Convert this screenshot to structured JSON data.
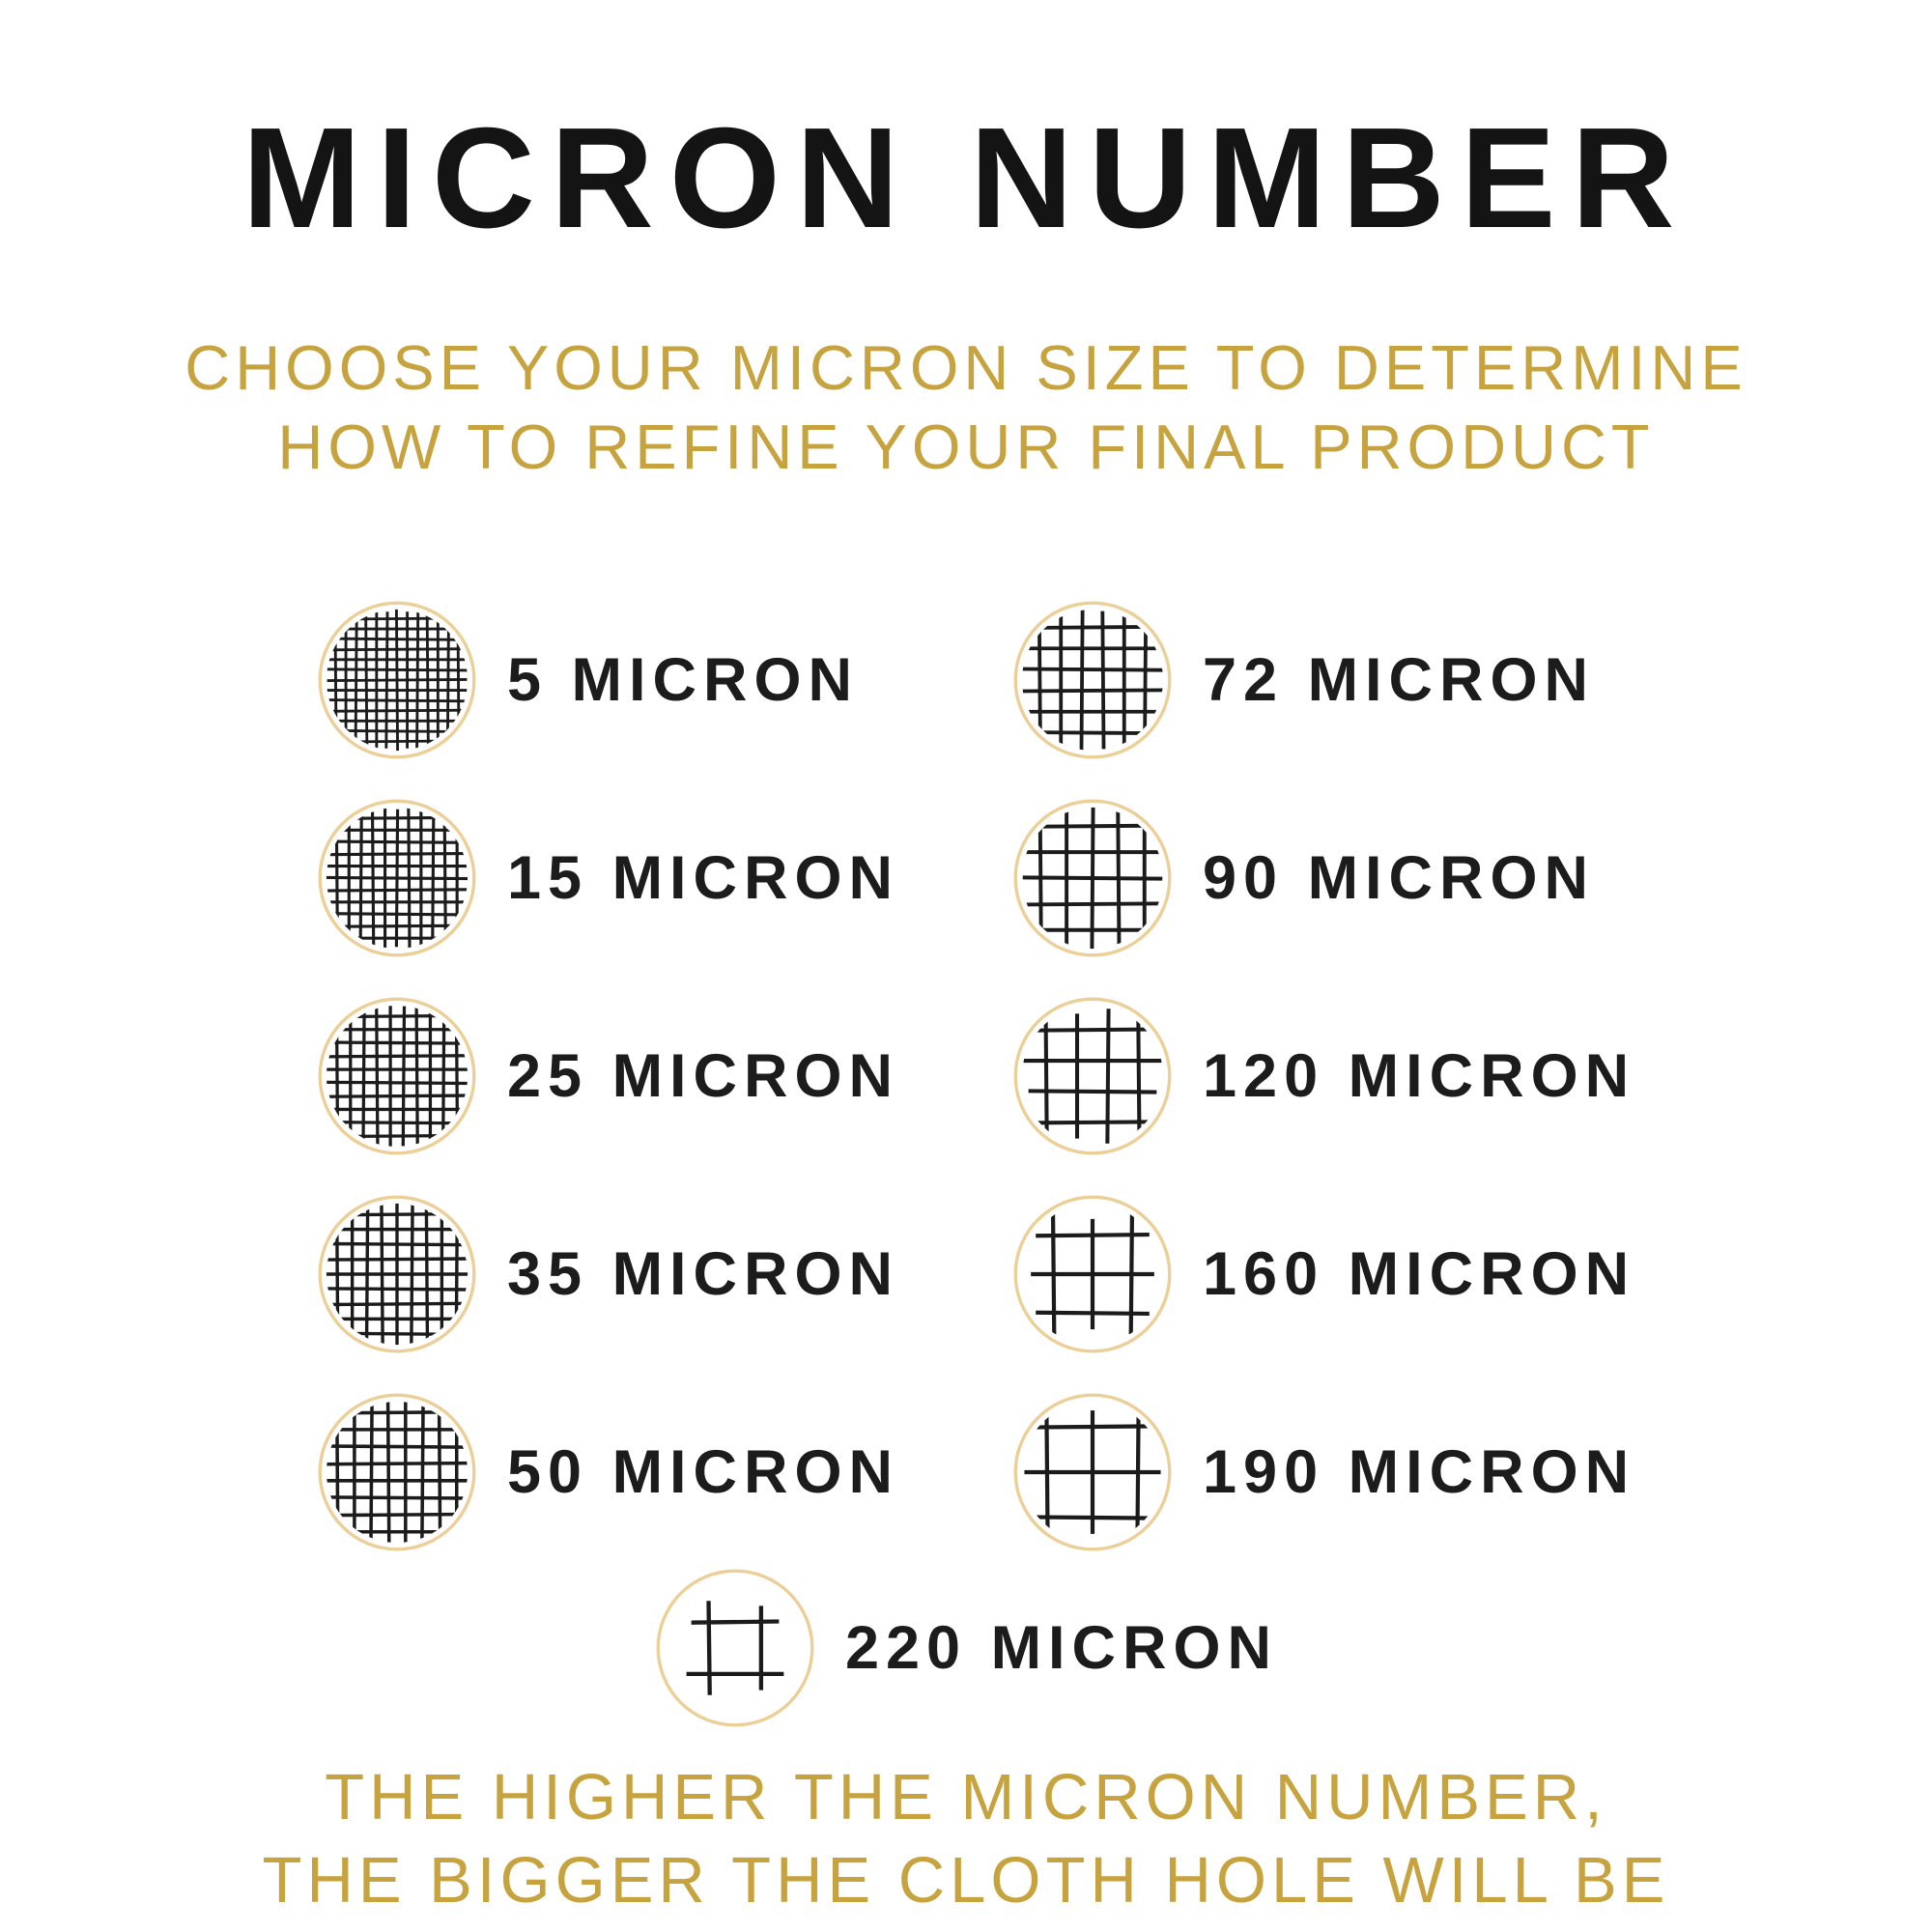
{
  "title": "MICRON NUMBER",
  "subtitle": {
    "line1": "CHOOSE YOUR MICRON SIZE TO DETERMINE",
    "line2": "HOW TO REFINE YOUR FINAL PRODUCT"
  },
  "items": {
    "left": [
      {
        "label": "5 MICRON",
        "mesh": {
          "lines": 13,
          "spacing": 6.3
        }
      },
      {
        "label": "15 MICRON",
        "mesh": {
          "lines": 11,
          "spacing": 7.4
        }
      },
      {
        "label": "25 MICRON",
        "mesh": {
          "lines": 10,
          "spacing": 8.2
        }
      },
      {
        "label": "35 MICRON",
        "mesh": {
          "lines": 9,
          "spacing": 9.2
        }
      },
      {
        "label": "50 MICRON",
        "mesh": {
          "lines": 8,
          "spacing": 10.5
        }
      }
    ],
    "right": [
      {
        "label": "72 MICRON",
        "mesh": {
          "lines": 6,
          "spacing": 13
        }
      },
      {
        "label": "90 MICRON",
        "mesh": {
          "lines": 5,
          "spacing": 16
        }
      },
      {
        "label": "120 MICRON",
        "mesh": {
          "lines": 4,
          "spacing": 19
        }
      },
      {
        "label": "160 MICRON",
        "mesh": {
          "lines": 3,
          "spacing": 24
        }
      },
      {
        "label": "190 MICRON",
        "mesh": {
          "lines": 3,
          "spacing": 28
        }
      }
    ],
    "bottom": [
      {
        "label": "220 MICRON",
        "mesh": {
          "lines": 2,
          "spacing": 32
        }
      }
    ]
  },
  "footer": {
    "line1": "THE HIGHER THE MICRON NUMBER,",
    "line2": "THE BIGGER THE CLOTH HOLE WILL BE"
  },
  "colors": {
    "background": "#ffffff",
    "title_text": "#141414",
    "label_text": "#1c1c1c",
    "gold_text": "#c6a33e",
    "circle_outline": "#eccf97",
    "mesh_line": "#1b1b1b"
  }
}
